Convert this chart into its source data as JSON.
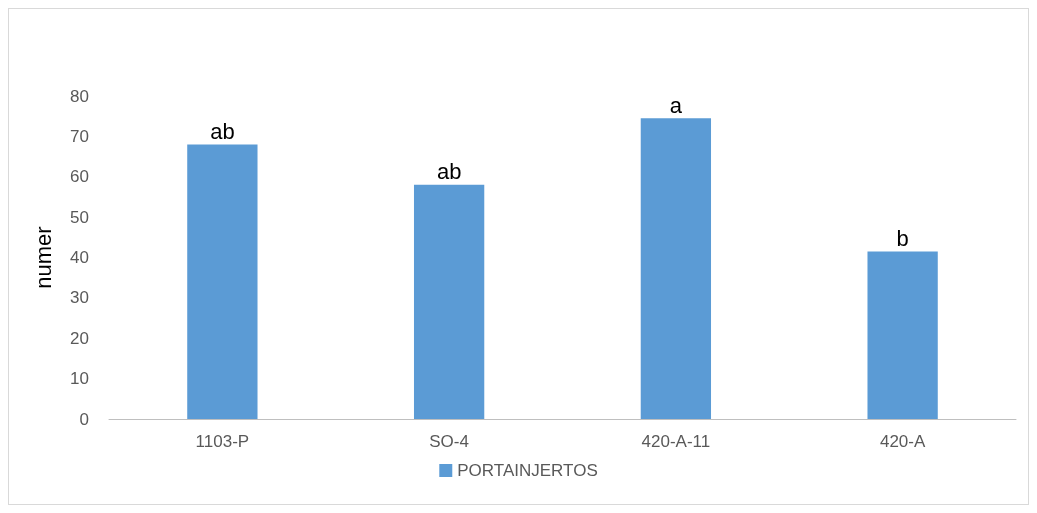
{
  "chart_data": {
    "type": "bar",
    "ylabel": "numer",
    "categories": [
      "1103-P",
      "SO-4",
      "420-A-11",
      "420-A"
    ],
    "series": [
      {
        "name": "PORTAINJERTOS",
        "color": "#5b9bd5",
        "values": [
          68,
          58,
          74.5,
          41.5
        ]
      }
    ],
    "ylim": [
      0,
      80
    ],
    "yticks": [
      0,
      10,
      20,
      30,
      40,
      50,
      60,
      70,
      80
    ],
    "grid": false,
    "legend": "bottom",
    "annotations": [
      {
        "text": "ab",
        "x": "1103-P",
        "y": 68
      },
      {
        "text": "ab",
        "x": "SO-4",
        "y": 58
      },
      {
        "text": "a",
        "x": "420-A-11",
        "y": 74.5
      },
      {
        "text": "b",
        "x": "420-A",
        "y": 41.5
      }
    ]
  }
}
